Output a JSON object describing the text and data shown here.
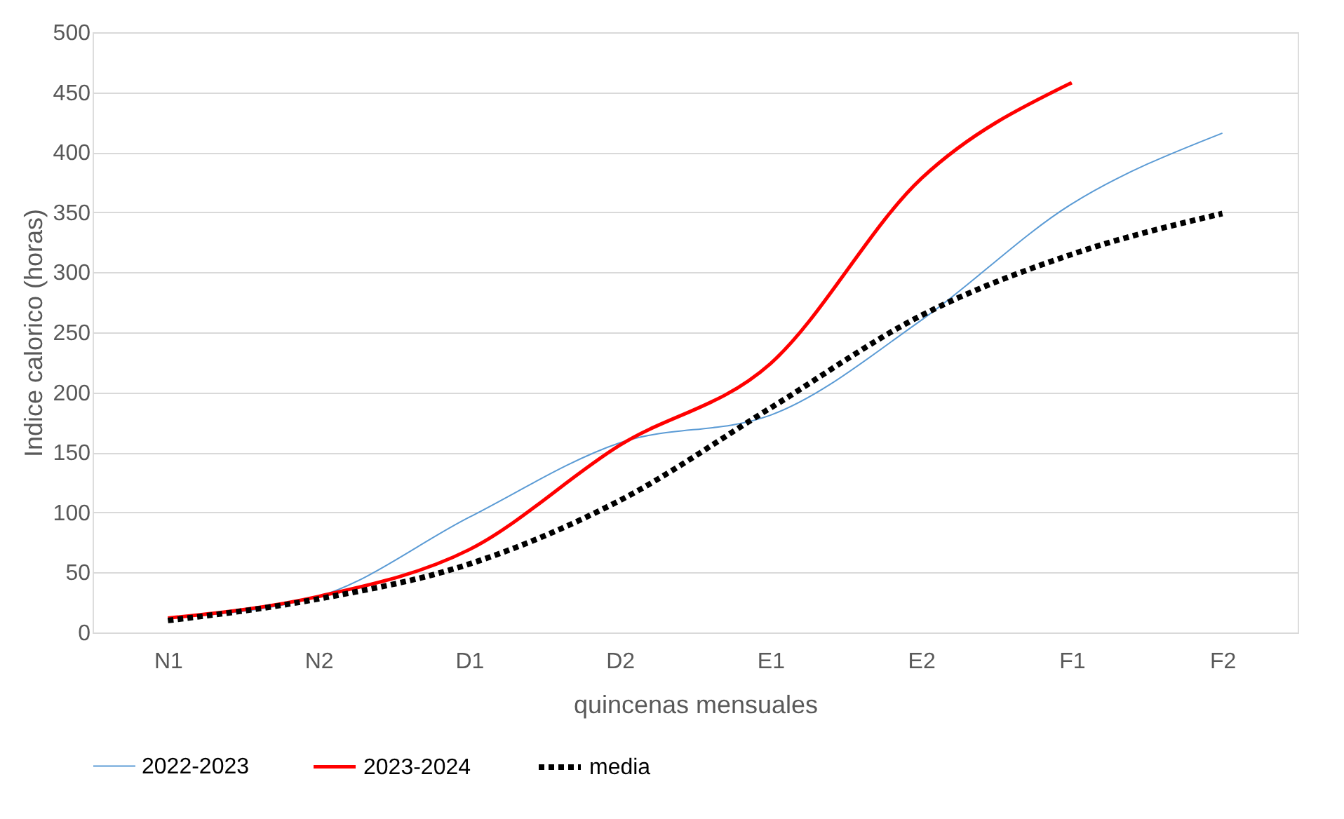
{
  "chart_data": {
    "type": "line",
    "xlabel": "quincenas mensuales",
    "ylabel": "Indice calorico (horas)",
    "categories": [
      "N1",
      "N2",
      "D1",
      "D2",
      "E1",
      "E2",
      "F1",
      "F2"
    ],
    "series": [
      {
        "name": "2022-2023",
        "color": "#5b9bd5",
        "line_style": "solid",
        "values": [
          12,
          30,
          96,
          158,
          181,
          260,
          357,
          416
        ]
      },
      {
        "name": "2023-2024",
        "color": "#ff0000",
        "line_style": "solid",
        "values": [
          12,
          30,
          69,
          156,
          224,
          378,
          458,
          null
        ]
      },
      {
        "name": "media",
        "color": "#000000",
        "line_style": "dashed",
        "values": [
          10,
          28,
          57,
          110,
          187,
          264,
          315,
          349
        ]
      }
    ],
    "ylim": [
      0,
      500
    ],
    "yticks": [
      0,
      50,
      100,
      150,
      200,
      250,
      300,
      350,
      400,
      450,
      500
    ],
    "grid": "y",
    "legend": "bottom",
    "marker": "none"
  }
}
